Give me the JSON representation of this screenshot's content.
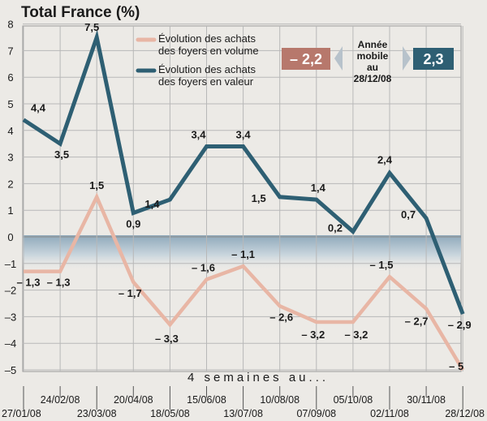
{
  "chart_data": {
    "type": "line",
    "title": "Total France (%)",
    "yticks": [
      8,
      7,
      6,
      5,
      4,
      3,
      2,
      1,
      0,
      -1,
      -2,
      -3,
      -4,
      -5
    ],
    "ytick_labels": [
      "8",
      "7",
      "6",
      "5",
      "4",
      "3",
      "2",
      "1",
      "0",
      "–1",
      "–2",
      "–3",
      "–4",
      "–5"
    ],
    "ylim": [
      -5.3,
      8
    ],
    "x_caption": "4 semaines au...",
    "categories": [
      "27/01/08",
      "24/02/08",
      "23/03/08",
      "20/04/08",
      "18/05/08",
      "15/06/08",
      "13/07/08",
      "10/08/08",
      "07/09/08",
      "05/10/08",
      "02/11/08",
      "30/11/08",
      "28/12/08"
    ],
    "series": [
      {
        "name": "Évolution des achats des foyers en volume",
        "legend_lines": [
          "Évolution des achats",
          "des foyers en volume"
        ],
        "color": "#e8b6a5",
        "values": [
          -1.3,
          -1.3,
          1.5,
          -1.7,
          -3.3,
          -1.6,
          -1.1,
          -2.6,
          -3.2,
          -3.2,
          -1.5,
          -2.7,
          -5
        ],
        "labels": [
          "– 1,3",
          "– 1,3",
          "1,5",
          "– 1,7",
          "– 3,3",
          "– 1,6",
          "– 1,1",
          "– 2,6",
          "– 3,2",
          "– 3,2",
          "– 1,5",
          "– 2,7",
          "– 5"
        ]
      },
      {
        "name": "Évolution des achats des foyers en valeur",
        "legend_lines": [
          "Évolution des achats",
          "des foyers en valeur"
        ],
        "color": "#2e5f73",
        "values": [
          4.4,
          3.5,
          7.5,
          0.9,
          1.4,
          3.4,
          3.4,
          1.5,
          1.4,
          0.2,
          2.4,
          0.7,
          -2.9
        ],
        "labels": [
          "4,4",
          "3,5",
          "7,5",
          "0,9",
          "1,4",
          "3,4",
          "3,4",
          "1,5",
          "1,4",
          "0,2",
          "2,4",
          "0,7",
          "– 2,9"
        ]
      }
    ],
    "rolling_year": {
      "lines": [
        "Année",
        "mobile",
        "au",
        "28/12/08"
      ],
      "volume_value": "– 2,2",
      "value_value": "2,3",
      "volume_color": "#b7786c",
      "value_color": "#2e5f73"
    },
    "grid": true,
    "legend_position": "top-center",
    "negative_band_color": "#9db3c2"
  }
}
